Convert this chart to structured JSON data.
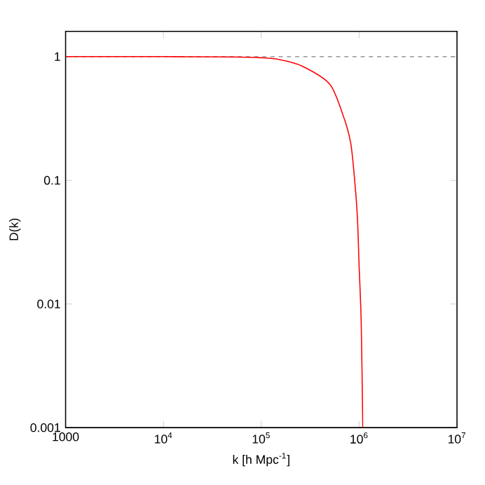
{
  "chart_data": {
    "type": "line",
    "xlabel": "k [h Mpc$^{-1}$]",
    "ylabel": "D(k)",
    "log": "xy",
    "x": [
      1000,
      10000,
      50000,
      100000,
      150000,
      260000,
      500000,
      690000,
      820000,
      900000,
      960000,
      1000000,
      1050000,
      1090000
    ],
    "series": [
      {
        "color": "#ff0000",
        "values": [
          1,
          1,
          0.995,
          0.98,
          0.95,
          0.84,
          0.6,
          0.33,
          0.2,
          0.1,
          0.05,
          0.02,
          0.007,
          0.001
        ]
      }
    ],
    "xlim": [
      1000,
      10000000
    ],
    "ylim": [
      0.001,
      1.6
    ],
    "xticks": [
      1000,
      {
        "value": 10000,
        "label": "10$^{4}$"
      },
      {
        "value": 100000,
        "label": "10$^{5}$"
      },
      {
        "value": 1000000,
        "label": "10$^{6}$"
      },
      {
        "value": 10000000,
        "label": "10$^{7}$"
      }
    ],
    "yticks": [
      0.001,
      0.01,
      0.1,
      1
    ],
    "ref_lines": [
      {
        "axis": "y",
        "value": 1,
        "color": "#808080",
        "line_style": "dashed"
      }
    ],
    "marker": "none"
  }
}
